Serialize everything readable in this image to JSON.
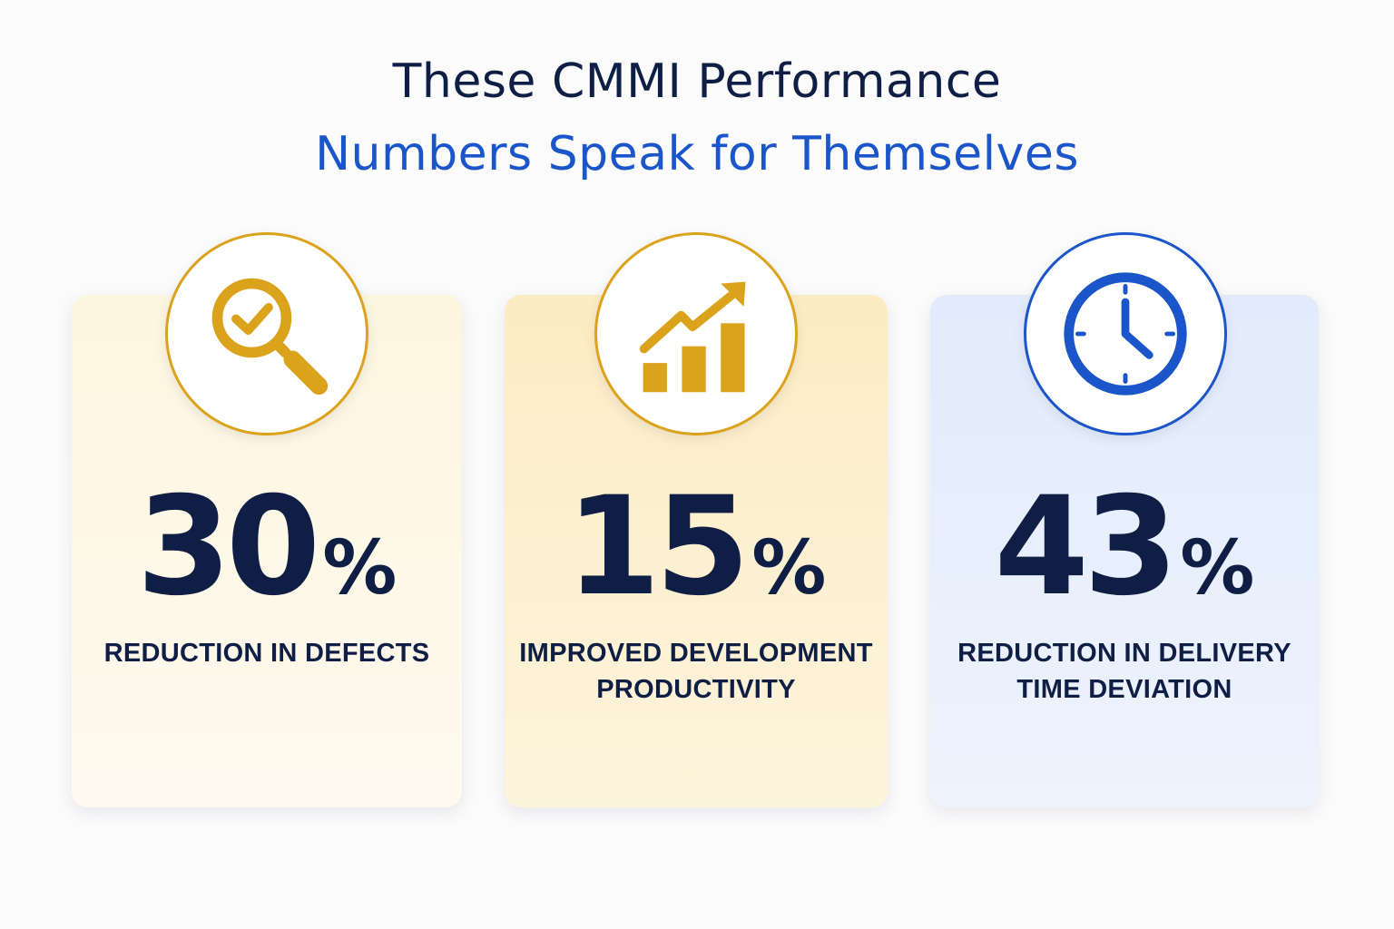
{
  "header": {
    "title_line1": "These CMMI Performance",
    "title_line2": "Numbers Speak for Themselves",
    "title_line1_color": "#0f1e45",
    "title_line2_color": "#1a55c9"
  },
  "stats": [
    {
      "number": "30",
      "percent_sign": "%",
      "label_lines": [
        "REDUCTION IN DEFECTS"
      ],
      "icon": "magnifier-check-icon",
      "accent_color": "#dba21c",
      "card_color": "#fdf5de"
    },
    {
      "number": "15",
      "percent_sign": "%",
      "label_lines": [
        "IMPROVED DEVELOPMENT",
        "PRODUCTIVITY"
      ],
      "icon": "growth-chart-icon",
      "accent_color": "#dba21c",
      "card_color": "#fcecc4"
    },
    {
      "number": "43",
      "percent_sign": "%",
      "label_lines": [
        "REDUCTION IN DELIVERY",
        "TIME DEVIATION"
      ],
      "icon": "clock-icon",
      "accent_color": "#1a55c9",
      "card_color": "#e2ebfb"
    }
  ]
}
